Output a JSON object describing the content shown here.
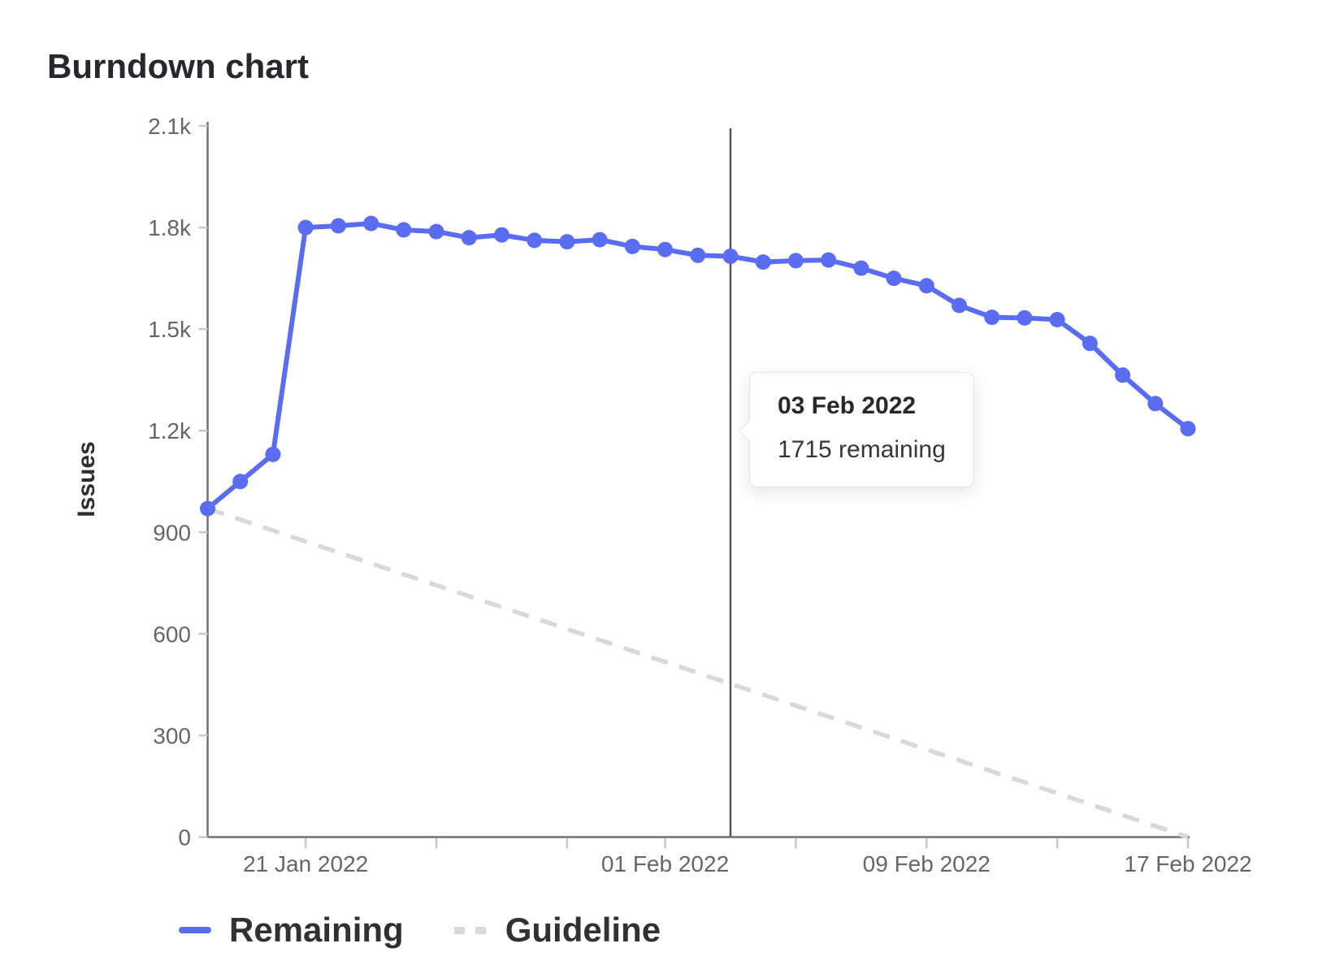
{
  "header": {
    "title": "Burndown chart"
  },
  "colors": {
    "remaining": "#5a6cf0",
    "guideline": "#d9d9d9",
    "axis": "#6e7176",
    "tick": "#c6c8ca",
    "ticklabel": "#63666a",
    "today": "#53565b"
  },
  "chart_data": {
    "type": "line",
    "title": "Burndown chart",
    "xlabel": "",
    "ylabel": "Issues",
    "ylim": [
      0,
      2100
    ],
    "grid": false,
    "legend_position": "bottom-left",
    "y_ticks": [
      {
        "label": "0",
        "value": 0
      },
      {
        "label": "300",
        "value": 300
      },
      {
        "label": "600",
        "value": 600
      },
      {
        "label": "900",
        "value": 900
      },
      {
        "label": "1.2k",
        "value": 1200
      },
      {
        "label": "1.5k",
        "value": 1500
      },
      {
        "label": "1.8k",
        "value": 1800
      },
      {
        "label": "2.1k",
        "value": 2100
      }
    ],
    "x": [
      "18 Jan 2022",
      "19 Jan 2022",
      "20 Jan 2022",
      "21 Jan 2022",
      "22 Jan 2022",
      "23 Jan 2022",
      "24 Jan 2022",
      "25 Jan 2022",
      "26 Jan 2022",
      "27 Jan 2022",
      "28 Jan 2022",
      "29 Jan 2022",
      "30 Jan 2022",
      "31 Jan 2022",
      "01 Feb 2022",
      "02 Feb 2022",
      "03 Feb 2022",
      "04 Feb 2022",
      "05 Feb 2022",
      "06 Feb 2022",
      "07 Feb 2022",
      "08 Feb 2022",
      "09 Feb 2022",
      "10 Feb 2022",
      "11 Feb 2022",
      "12 Feb 2022",
      "13 Feb 2022",
      "14 Feb 2022",
      "15 Feb 2022",
      "16 Feb 2022",
      "17 Feb 2022"
    ],
    "x_tick_indices": [
      3,
      7,
      11,
      14,
      18,
      22,
      26,
      30
    ],
    "x_labeled_ticks": [
      {
        "index": 3,
        "label": "21 Jan 2022"
      },
      {
        "index": 14,
        "label": "01 Feb 2022"
      },
      {
        "index": 22,
        "label": "09 Feb 2022"
      },
      {
        "index": 30,
        "label": "17 Feb 2022"
      }
    ],
    "series": [
      {
        "name": "Remaining",
        "style": "solid",
        "values": [
          970,
          1050,
          1130,
          1800,
          1805,
          1812,
          1793,
          1788,
          1770,
          1778,
          1762,
          1758,
          1764,
          1744,
          1735,
          1718,
          1715,
          1698,
          1702,
          1704,
          1680,
          1650,
          1628,
          1570,
          1535,
          1533,
          1528,
          1458,
          1364,
          1280,
          1206
        ]
      },
      {
        "name": "Guideline",
        "style": "dashed",
        "points": [
          {
            "index": 0,
            "value": 970
          },
          {
            "index": 30,
            "value": 0
          }
        ]
      }
    ],
    "today_index": 16
  },
  "tooltip": {
    "date": "03 Feb 2022",
    "body": "1715 remaining"
  },
  "legend": {
    "remaining_label": "Remaining",
    "guideline_label": "Guideline"
  }
}
